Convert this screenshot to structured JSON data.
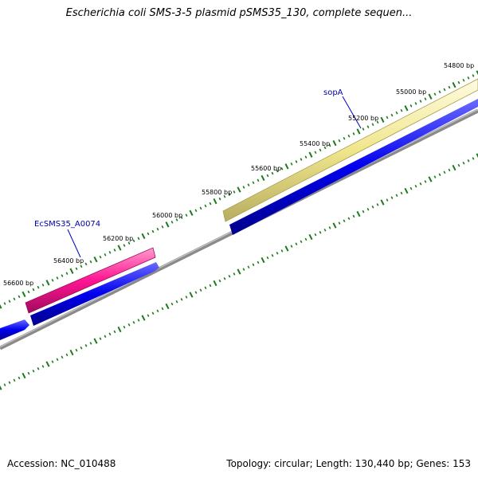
{
  "title": "Escherichia coli SMS-3-5 plasmid pSMS35_130, complete sequen...",
  "accession_text": "Accession: NC_010488",
  "topology_text": "Topology: circular; Length: 130,440 bp; Genes: 153",
  "tick_labels": [
    "54800 bp",
    "55000 bp",
    "55200 bp",
    "55400 bp",
    "55600 bp",
    "55800 bp",
    "56000 bp",
    "56200 bp",
    "56400 bp",
    "56600 bp"
  ],
  "gene_labels": {
    "sopA": "sopA",
    "ecsms35": "EcSMS35_A0074"
  },
  "colors": {
    "backbone": "#808080",
    "ticks": "#1a7a1a",
    "cds": "#0000ee",
    "gene_yellow": "#f0e68c",
    "gene_pink": "#ff1493",
    "label_line": "#0000cc"
  }
}
